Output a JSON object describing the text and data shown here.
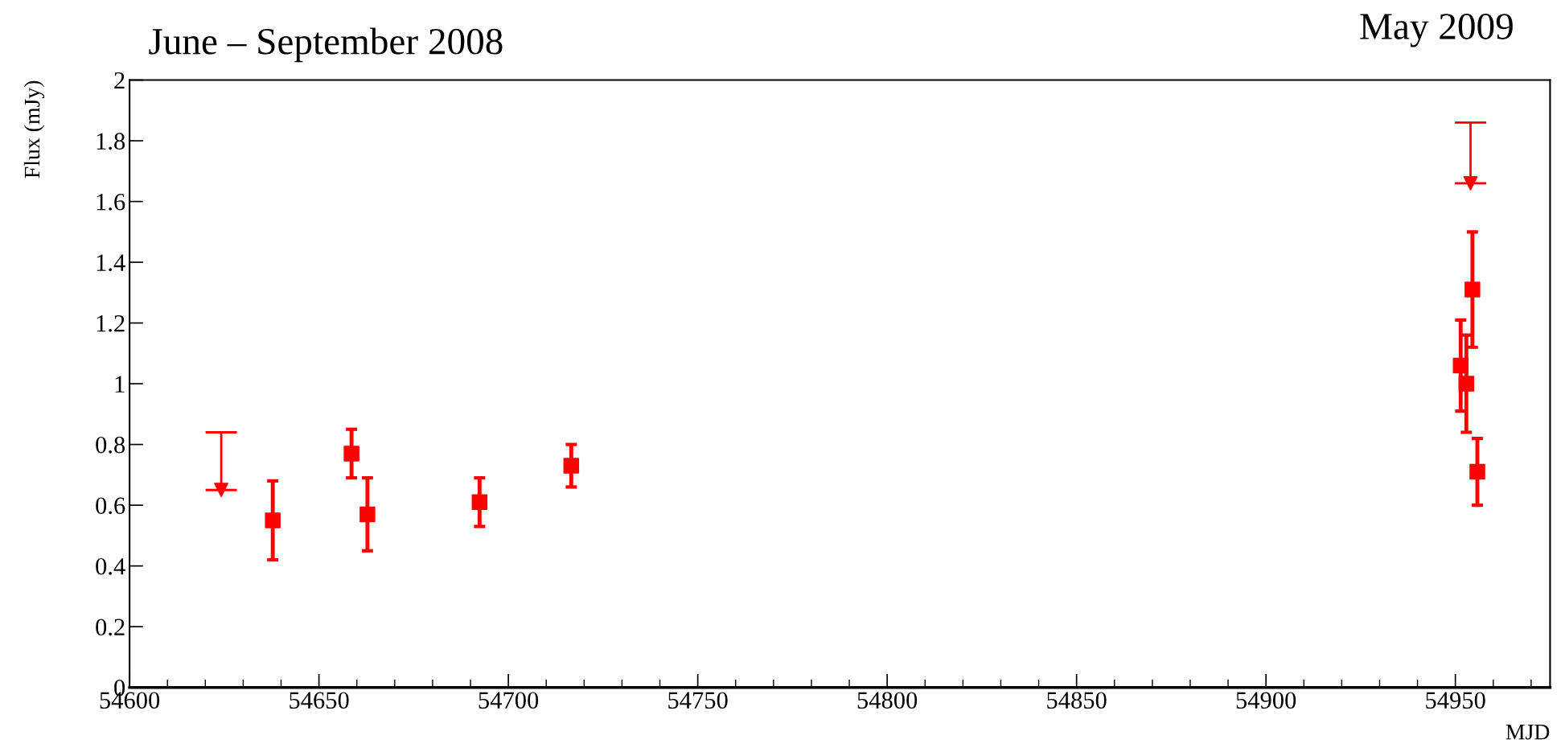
{
  "chart_data": {
    "type": "scatter",
    "xlabel": "MJD",
    "ylabel": "Flux (mJy)",
    "annotations": [
      "June – September 2008",
      "May 2009"
    ],
    "series": [
      {
        "color": "#ff0000",
        "marker": "square",
        "x": [
          54637.8,
          54658.6,
          54662.8,
          54692.4,
          54716.6,
          54951.4,
          54952.9,
          54954.5,
          54955.8
        ],
        "values": [
          0.55,
          0.77,
          0.57,
          0.61,
          0.73,
          1.06,
          1.0,
          1.31,
          0.71
        ],
        "errors": [
          0.13,
          0.08,
          0.12,
          0.08,
          0.07,
          0.15,
          0.16,
          0.19,
          0.11
        ]
      },
      {
        "color": "#ff0000",
        "marker": "triangle",
        "x": [
          54624.2,
          54954.0
        ],
        "values": [
          0.65,
          1.66
        ],
        "errors": [
          [
            0.65,
            0.84
          ],
          [
            1.66,
            1.86
          ]
        ]
      }
    ],
    "xlim": [
      54600,
      54975
    ],
    "xticks": [
      54600,
      54650,
      54700,
      54750,
      54800,
      54850,
      54900,
      54950
    ],
    "ylim": [
      0,
      2
    ],
    "yticks": [
      0,
      0.2,
      0.4,
      0.6,
      0.8,
      1,
      1.2,
      1.4,
      1.6,
      1.8,
      2
    ],
    "grid": false,
    "legend": false
  }
}
